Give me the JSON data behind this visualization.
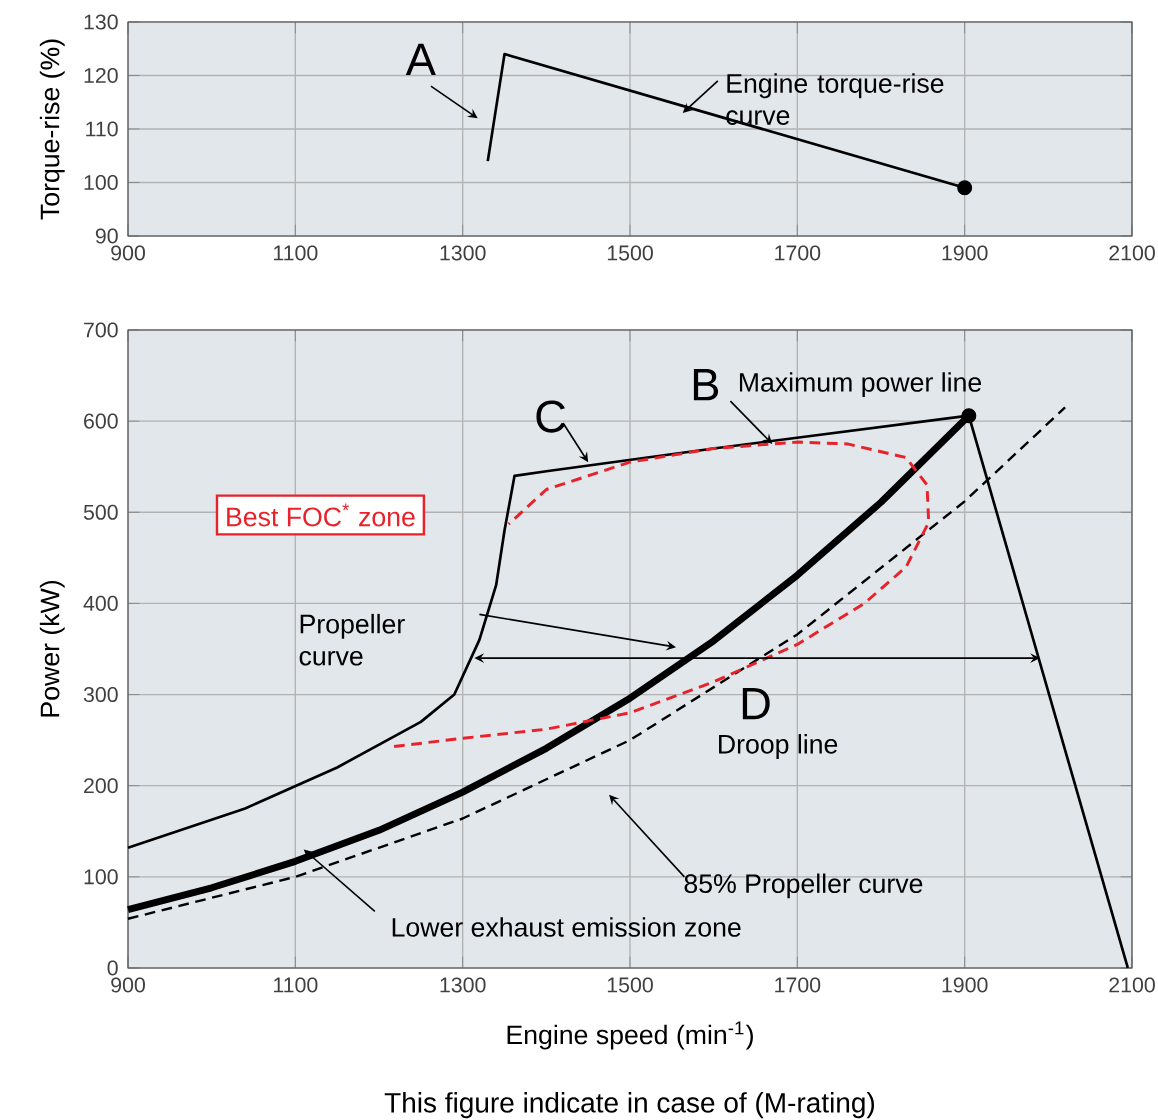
{
  "chart_data": [
    {
      "type": "line",
      "ylabel": "Torque-rise (%)",
      "xlim": [
        900,
        2100
      ],
      "ylim": [
        90,
        130
      ],
      "xticks": [
        900,
        1100,
        1300,
        1500,
        1700,
        1900,
        2100
      ],
      "yticks": [
        90,
        100,
        110,
        120,
        130
      ],
      "grid": true,
      "series": [
        {
          "color": "#000000",
          "x": [
            1330,
            1350,
            1900
          ],
          "values": [
            104,
            124,
            99
          ],
          "marker": "none",
          "line_style": "solid"
        },
        {
          "type": "scatter",
          "color": "#000000",
          "x": [
            1900
          ],
          "values": [
            99
          ],
          "marker": "circle"
        }
      ],
      "annotations": [
        "A",
        "Engine torque-rise curve"
      ]
    },
    {
      "type": "line",
      "xlabel": "Engine speed (min$^{-1}$)",
      "ylabel": "Power (kW)",
      "xlim": [
        900,
        2100
      ],
      "ylim": [
        0,
        700
      ],
      "xticks": [
        900,
        1100,
        1300,
        1500,
        1700,
        1900,
        2100
      ],
      "yticks": [
        0,
        100,
        200,
        300,
        400,
        500,
        600,
        700
      ],
      "grid": true,
      "series": [
        {
          "color": "#000000",
          "x": [
            900,
            1040,
            1150,
            1200,
            1250,
            1290,
            1320,
            1340,
            1350,
            1362,
            1400,
            1600,
            1905,
            2095
          ],
          "values": [
            132,
            175,
            220,
            245,
            270,
            300,
            360,
            420,
            480,
            540,
            545,
            570,
            606,
            0
          ],
          "marker": "none",
          "line_style": "solid"
        },
        {
          "color": "#000000",
          "x": [
            900,
            1000,
            1100,
            1200,
            1300,
            1400,
            1500,
            1600,
            1700,
            1800,
            1905
          ],
          "values": [
            64,
            88,
            117,
            151,
            193,
            241,
            296,
            359,
            431,
            511,
            606
          ],
          "marker": "none",
          "line_style": "solid"
        },
        {
          "color": "#000000",
          "x": [
            900,
            1100,
            1300,
            1500,
            1700,
            1900,
            2020
          ],
          "values": [
            54,
            100,
            164,
            250,
            366,
            512,
            615
          ],
          "marker": "none",
          "line_style": "dashed"
        },
        {
          "color": "#e8212a",
          "x": [
            1218,
            1300,
            1400,
            1500,
            1600,
            1700,
            1780,
            1830,
            1857,
            1855,
            1830,
            1760,
            1700,
            1600,
            1500,
            1400,
            1355
          ],
          "values": [
            243,
            252,
            262,
            280,
            314,
            355,
            400,
            440,
            489,
            530,
            560,
            575,
            577,
            570,
            555,
            525,
            487
          ],
          "marker": "none",
          "line_style": "dashed"
        },
        {
          "type": "scatter",
          "color": "#000000",
          "x": [
            1905
          ],
          "values": [
            606
          ],
          "marker": "circle"
        }
      ],
      "annotations": [
        "B",
        "Maximum power line",
        "C",
        "Best FOC$^{*}$ zone",
        "Propeller curve",
        "D",
        "Droop line",
        "85% Propeller curve",
        "Lower exhaust emission zone",
        "This figure indicate in case of (M-rating)"
      ]
    }
  ]
}
